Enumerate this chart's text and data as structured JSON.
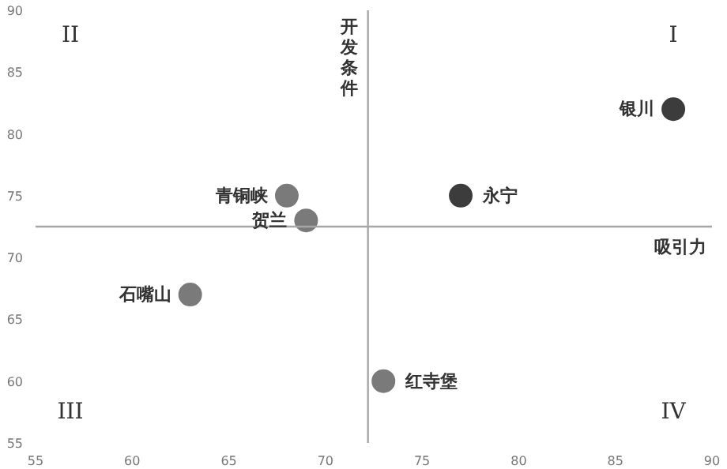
{
  "chart_data": {
    "type": "scatter",
    "xlabel": "吸引力",
    "ylabel": "开发条件",
    "xlim": [
      55,
      90
    ],
    "ylim": [
      55,
      90
    ],
    "xticks": [
      55,
      60,
      65,
      70,
      75,
      80,
      85,
      90
    ],
    "yticks": [
      55,
      60,
      65,
      70,
      75,
      80,
      85,
      90
    ],
    "grid": false,
    "marker": "circle",
    "series": [
      {
        "name": "银川",
        "color": "#3c3c3c",
        "x": [
          88
        ],
        "values": [
          82
        ]
      },
      {
        "name": "永宁",
        "color": "#3c3c3c",
        "x": [
          77
        ],
        "values": [
          75
        ]
      },
      {
        "name": "青铜峡",
        "color": "#7a7a7a",
        "x": [
          68
        ],
        "values": [
          75
        ]
      },
      {
        "name": "贺兰",
        "color": "#7a7a7a",
        "x": [
          69
        ],
        "values": [
          73
        ]
      },
      {
        "name": "石嘴山",
        "color": "#7a7a7a",
        "x": [
          63
        ],
        "values": [
          67
        ]
      },
      {
        "name": "红寺堡",
        "color": "#7a7a7a",
        "x": [
          73
        ],
        "values": [
          60
        ]
      }
    ],
    "ref_lines": [
      {
        "axis": "x",
        "value": 72.2,
        "label": null,
        "color": "#a6a6a6"
      },
      {
        "axis": "y",
        "value": 72.5,
        "label": null,
        "color": "#a6a6a6"
      }
    ],
    "annotations": [
      "II",
      "I",
      "III",
      "IV"
    ]
  }
}
